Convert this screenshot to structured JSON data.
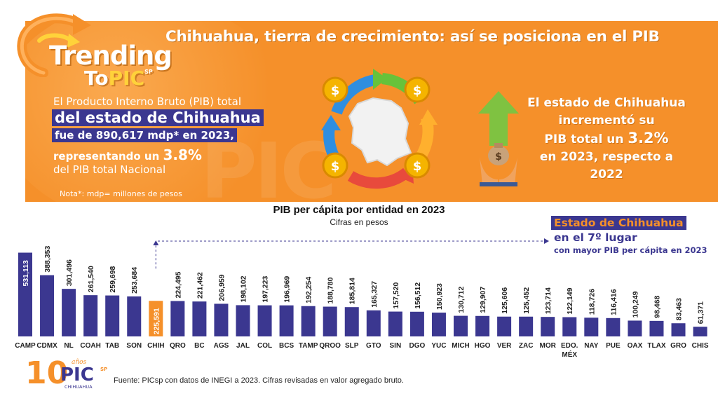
{
  "banner": {
    "brand_trending": "Trending",
    "brand_to": "To",
    "brand_pic": "PIC",
    "brand_sp": "SP",
    "headline": "Chihuahua, tierra de crecimiento: así se posiciona en el PIB",
    "left_line1": "El Producto Interno Bruto (PIB) total",
    "left_line2": "del estado de Chihuahua",
    "left_line3": "fue de 890,617 mdp* en 2023,",
    "left_line4_pre": "representando un ",
    "left_line4_value": "3.8%",
    "left_line5": "del PIB total Nacional",
    "note": "Nota*: mdp= millones de pesos",
    "right_line1": "El estado de Chihuahua",
    "right_line2": "incrementó su",
    "right_line3_pre": "PIB total un ",
    "right_line3_value": "3.2%",
    "right_line4": "en 2023, respecto a 2022",
    "watermark": "PIC",
    "icons": [
      "refresh-swoosh-icon",
      "coin-cycle-icon",
      "chihuahua-map-icon",
      "growth-arrow-icon",
      "money-bag-hands-icon"
    ]
  },
  "callout": {
    "line1": "Estado de Chihuahua",
    "line2_pre": "en el ",
    "line2_value": "7º lugar",
    "line3": "con mayor PIB per cápita en 2023"
  },
  "chart_data": {
    "type": "bar",
    "title": "PIB per cápita por entidad en 2023",
    "subtitle": "Cifras en pesos",
    "xlabel": "",
    "ylabel": "",
    "highlight": "CHIH",
    "colors": {
      "bar": "#3b3790",
      "highlight": "#f5902a"
    },
    "grid": false,
    "legend": "none",
    "ylim": [
      0,
      560000
    ],
    "categories": [
      "CAMP",
      "CDMX",
      "NL",
      "COAH",
      "TAB",
      "SON",
      "CHIH",
      "QRO",
      "BC",
      "AGS",
      "JAL",
      "COL",
      "BCS",
      "TAMP",
      "QROO",
      "SLP",
      "GTO",
      "SIN",
      "DGO",
      "YUC",
      "MICH",
      "HGO",
      "VER",
      "ZAC",
      "MOR",
      "EDO. MÉX",
      "NAY",
      "PUE",
      "OAX",
      "TLAX",
      "GRO",
      "CHIS"
    ],
    "values": [
      531113,
      388353,
      301496,
      261540,
      259698,
      253684,
      225591,
      224495,
      221462,
      206959,
      198102,
      197223,
      196969,
      192254,
      188780,
      185814,
      165327,
      157520,
      156512,
      150923,
      130712,
      129907,
      125606,
      125452,
      123714,
      122149,
      118726,
      116416,
      100249,
      98468,
      83463,
      61371
    ],
    "labels": [
      "531,113",
      "388,353",
      "301,496",
      "261,540",
      "259,698",
      "253,684",
      "225,591",
      "224,495",
      "221,462",
      "206,959",
      "198,102",
      "197,223",
      "196,969",
      "192,254",
      "188,780",
      "185,814",
      "165,327",
      "157,520",
      "156,512",
      "150,923",
      "130,712",
      "129,907",
      "125,606",
      "125,452",
      "123,714",
      "122,149",
      "118,726",
      "116,416",
      "100,249",
      "98,468",
      "83,463",
      "61,371"
    ]
  },
  "footer": {
    "logo_main": "10",
    "logo_anos": "años",
    "logo_pic": "PIC",
    "logo_sp": "SP",
    "logo_sub": "CHIHUAHUA",
    "source": "Fuente:  PICsp con datos de INEGI a 2023. Cifras revisadas en valor agregado bruto."
  }
}
